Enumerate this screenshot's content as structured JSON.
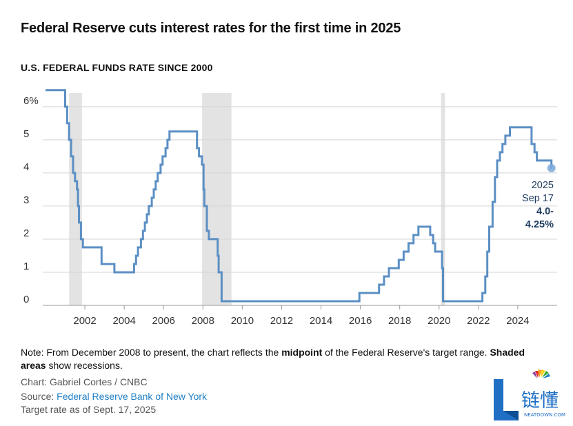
{
  "header": {
    "title": "Federal Reserve cuts interest rates for the first time in 2025",
    "subtitle": "U.S. FEDERAL FUNDS RATE SINCE 2000"
  },
  "chart_data": {
    "type": "line",
    "title": "Federal Reserve cuts interest rates for the first time in 2025",
    "subtitle": "U.S. FEDERAL FUNDS RATE SINCE 2000",
    "xlabel": "",
    "ylabel": "",
    "xlim": [
      2000,
      2026
    ],
    "ylim": [
      0,
      6.6
    ],
    "grid": true,
    "line_color": "#5b8fc4",
    "recession_color": "#e3e3e3",
    "y_ticks": [
      {
        "value": 0,
        "label": "0"
      },
      {
        "value": 1,
        "label": "1"
      },
      {
        "value": 2,
        "label": "2"
      },
      {
        "value": 3,
        "label": "3"
      },
      {
        "value": 4,
        "label": "4"
      },
      {
        "value": 5,
        "label": "5"
      },
      {
        "value": 6,
        "label": "6%"
      }
    ],
    "x_ticks": [
      {
        "value": 2002,
        "label": "2002"
      },
      {
        "value": 2004,
        "label": "2004"
      },
      {
        "value": 2006,
        "label": "2006"
      },
      {
        "value": 2008,
        "label": "2008"
      },
      {
        "value": 2010,
        "label": "2010"
      },
      {
        "value": 2012,
        "label": "2012"
      },
      {
        "value": 2014,
        "label": "2014"
      },
      {
        "value": 2016,
        "label": "2016"
      },
      {
        "value": 2018,
        "label": "2018"
      },
      {
        "value": 2020,
        "label": "2020"
      },
      {
        "value": 2022,
        "label": "2022"
      },
      {
        "value": 2024,
        "label": "2024"
      }
    ],
    "recessions": [
      [
        2001.2,
        2001.85
      ],
      [
        2007.95,
        2009.45
      ],
      [
        2020.1,
        2020.3
      ]
    ],
    "series": [
      {
        "points": [
          [
            2000.0,
            6.5
          ],
          [
            2000.5,
            6.5
          ],
          [
            2001.0,
            6.5
          ],
          [
            2001.0,
            6.0
          ],
          [
            2001.1,
            6.0
          ],
          [
            2001.1,
            5.5
          ],
          [
            2001.2,
            5.5
          ],
          [
            2001.2,
            5.0
          ],
          [
            2001.3,
            5.0
          ],
          [
            2001.3,
            4.5
          ],
          [
            2001.4,
            4.5
          ],
          [
            2001.4,
            4.0
          ],
          [
            2001.5,
            4.0
          ],
          [
            2001.5,
            3.75
          ],
          [
            2001.6,
            3.75
          ],
          [
            2001.6,
            3.5
          ],
          [
            2001.65,
            3.5
          ],
          [
            2001.65,
            3.0
          ],
          [
            2001.7,
            3.0
          ],
          [
            2001.7,
            2.5
          ],
          [
            2001.8,
            2.5
          ],
          [
            2001.8,
            2.0
          ],
          [
            2001.9,
            2.0
          ],
          [
            2001.9,
            1.75
          ],
          [
            2002.85,
            1.75
          ],
          [
            2002.85,
            1.25
          ],
          [
            2003.5,
            1.25
          ],
          [
            2003.5,
            1.0
          ],
          [
            2004.5,
            1.0
          ],
          [
            2004.5,
            1.25
          ],
          [
            2004.6,
            1.25
          ],
          [
            2004.6,
            1.5
          ],
          [
            2004.7,
            1.5
          ],
          [
            2004.7,
            1.75
          ],
          [
            2004.85,
            1.75
          ],
          [
            2004.85,
            2.0
          ],
          [
            2004.95,
            2.0
          ],
          [
            2004.95,
            2.25
          ],
          [
            2005.05,
            2.25
          ],
          [
            2005.05,
            2.5
          ],
          [
            2005.15,
            2.5
          ],
          [
            2005.15,
            2.75
          ],
          [
            2005.25,
            2.75
          ],
          [
            2005.25,
            3.0
          ],
          [
            2005.4,
            3.0
          ],
          [
            2005.4,
            3.25
          ],
          [
            2005.5,
            3.25
          ],
          [
            2005.5,
            3.5
          ],
          [
            2005.6,
            3.5
          ],
          [
            2005.6,
            3.75
          ],
          [
            2005.7,
            3.75
          ],
          [
            2005.7,
            4.0
          ],
          [
            2005.85,
            4.0
          ],
          [
            2005.85,
            4.25
          ],
          [
            2005.95,
            4.25
          ],
          [
            2005.95,
            4.5
          ],
          [
            2006.1,
            4.5
          ],
          [
            2006.1,
            4.75
          ],
          [
            2006.2,
            4.75
          ],
          [
            2006.2,
            5.0
          ],
          [
            2006.3,
            5.0
          ],
          [
            2006.3,
            5.25
          ],
          [
            2007.7,
            5.25
          ],
          [
            2007.7,
            4.75
          ],
          [
            2007.8,
            4.75
          ],
          [
            2007.8,
            4.5
          ],
          [
            2007.95,
            4.5
          ],
          [
            2007.95,
            4.25
          ],
          [
            2008.03,
            4.25
          ],
          [
            2008.03,
            3.5
          ],
          [
            2008.07,
            3.5
          ],
          [
            2008.07,
            3.0
          ],
          [
            2008.2,
            3.0
          ],
          [
            2008.2,
            2.25
          ],
          [
            2008.3,
            2.25
          ],
          [
            2008.3,
            2.0
          ],
          [
            2008.75,
            2.0
          ],
          [
            2008.75,
            1.5
          ],
          [
            2008.8,
            1.5
          ],
          [
            2008.8,
            1.0
          ],
          [
            2008.95,
            1.0
          ],
          [
            2008.95,
            0.125
          ],
          [
            2015.95,
            0.125
          ],
          [
            2015.95,
            0.375
          ],
          [
            2016.95,
            0.375
          ],
          [
            2016.95,
            0.625
          ],
          [
            2017.2,
            0.625
          ],
          [
            2017.2,
            0.875
          ],
          [
            2017.45,
            0.875
          ],
          [
            2017.45,
            1.125
          ],
          [
            2017.95,
            1.125
          ],
          [
            2017.95,
            1.375
          ],
          [
            2018.2,
            1.375
          ],
          [
            2018.2,
            1.625
          ],
          [
            2018.45,
            1.625
          ],
          [
            2018.45,
            1.875
          ],
          [
            2018.7,
            1.875
          ],
          [
            2018.7,
            2.125
          ],
          [
            2018.95,
            2.125
          ],
          [
            2018.95,
            2.375
          ],
          [
            2019.55,
            2.375
          ],
          [
            2019.55,
            2.125
          ],
          [
            2019.7,
            2.125
          ],
          [
            2019.7,
            1.875
          ],
          [
            2019.8,
            1.875
          ],
          [
            2019.8,
            1.625
          ],
          [
            2020.15,
            1.625
          ],
          [
            2020.15,
            1.125
          ],
          [
            2020.2,
            1.125
          ],
          [
            2020.2,
            0.125
          ],
          [
            2022.2,
            0.125
          ],
          [
            2022.2,
            0.375
          ],
          [
            2022.35,
            0.375
          ],
          [
            2022.35,
            0.875
          ],
          [
            2022.45,
            0.875
          ],
          [
            2022.45,
            1.625
          ],
          [
            2022.55,
            1.625
          ],
          [
            2022.55,
            2.375
          ],
          [
            2022.72,
            2.375
          ],
          [
            2022.72,
            3.125
          ],
          [
            2022.84,
            3.125
          ],
          [
            2022.84,
            3.875
          ],
          [
            2022.95,
            3.875
          ],
          [
            2022.95,
            4.375
          ],
          [
            2023.09,
            4.375
          ],
          [
            2023.09,
            4.625
          ],
          [
            2023.22,
            4.625
          ],
          [
            2023.22,
            4.875
          ],
          [
            2023.37,
            4.875
          ],
          [
            2023.37,
            5.125
          ],
          [
            2023.6,
            5.125
          ],
          [
            2023.6,
            5.375
          ],
          [
            2024.7,
            5.375
          ],
          [
            2024.7,
            4.875
          ],
          [
            2024.85,
            4.875
          ],
          [
            2024.85,
            4.625
          ],
          [
            2024.97,
            4.625
          ],
          [
            2024.97,
            4.375
          ],
          [
            2025.71,
            4.375
          ],
          [
            2025.71,
            4.125
          ]
        ]
      }
    ],
    "annotation": {
      "x": 2025.71,
      "y": 4.125,
      "lines": [
        "2025",
        "Sep 17"
      ],
      "bold_lines": [
        "4.0-",
        "4.25%"
      ]
    }
  },
  "footer": {
    "note_prefix": "Note: From December 2008 to present, the chart reflects the ",
    "note_bold1": "midpoint",
    "note_mid": " of the Federal Reserve's target range. ",
    "note_bold2": "Shaded areas",
    "note_suffix": " show recessions.",
    "chart_credit": "Chart: Gabriel Cortes / CNBC",
    "source_prefix": "Source: ",
    "source_link": "Federal Reserve Bank of New York",
    "target_rate": "Target rate as of Sept. 17, 2025"
  },
  "logo": {
    "text": "链懂",
    "subtext": "NEATDOWN.COM",
    "color": "#1f6fc4"
  }
}
